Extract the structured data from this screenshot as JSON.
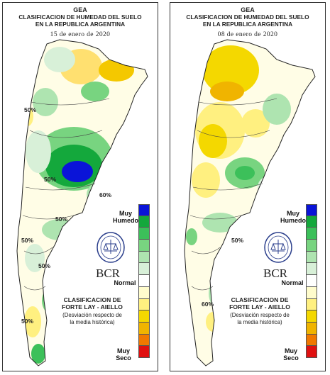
{
  "maps": [
    {
      "org": "GEA",
      "title_line1": "CLASIFICACION DE HUMEDAD DEL SUELO",
      "title_line2": "EN LA REPUBLICA ARGENTINA",
      "date": "15 de enero de 2020",
      "contour_labels": [
        "50%",
        "50%",
        "50%",
        "50%",
        "50%",
        "60%",
        "50%"
      ]
    },
    {
      "org": "GEA",
      "title_line1": "CLASIFICACION DE HUMEDAD DEL SUELO",
      "title_line2": "EN LA REPUBLICA ARGENTINA",
      "date": "08 de enero de 2020",
      "contour_labels": [
        "50%",
        "60%"
      ]
    }
  ],
  "legend": {
    "muy_humedo": "Muy\nHumedo",
    "normal": "Normal",
    "muy_seco": "Muy\nSeco",
    "classification": "CLASIFICACION DE\nFORTE LAY - AIELLO",
    "note": "(Desviación respecto de\nla media histórica)",
    "brand": "BCR",
    "colors": [
      "#0a14d8",
      "#14a83c",
      "#3cc05a",
      "#78d480",
      "#aee4b0",
      "#d8f0d8",
      "#ffffff",
      "#fffccc",
      "#fff080",
      "#f4d800",
      "#f0b400",
      "#f07800",
      "#e01010"
    ]
  }
}
